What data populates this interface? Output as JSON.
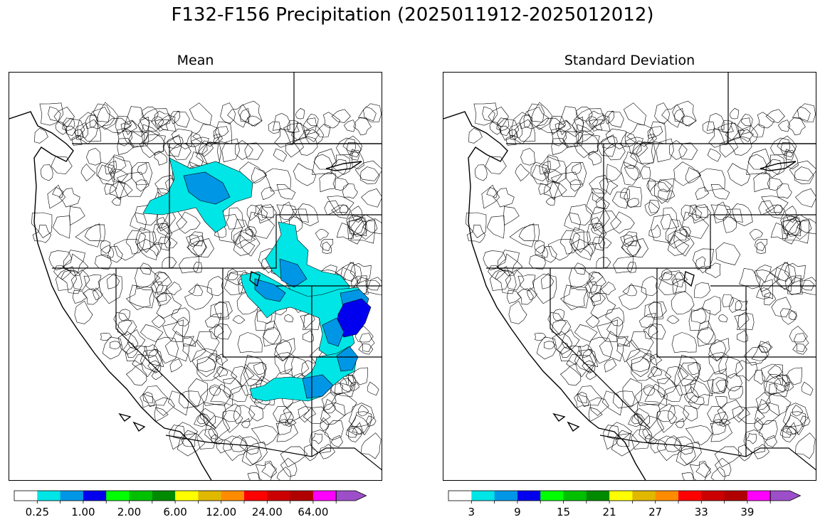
{
  "figure": {
    "title": "F132-F156 Precipitation (2025011912-2025012012)"
  },
  "panels": [
    {
      "title": "Mean",
      "colorbar": {
        "colors": [
          "#ffffff",
          "#00e5e5",
          "#0096e6",
          "#0000ee",
          "#00ff00",
          "#00c000",
          "#008a00",
          "#ffff00",
          "#e0b800",
          "#ff8c00",
          "#ff0000",
          "#cc0000",
          "#b00000",
          "#ff00ff",
          "#9c4fc8"
        ],
        "tick_labels": [
          "0.25",
          "1.00",
          "2.00",
          "6.00",
          "12.00",
          "24.00",
          "64.00"
        ]
      }
    },
    {
      "title": "Standard Deviation",
      "colorbar": {
        "colors": [
          "#ffffff",
          "#00e5e5",
          "#0096e6",
          "#0000ee",
          "#00ff00",
          "#00c000",
          "#008a00",
          "#ffff00",
          "#e0b800",
          "#ff8c00",
          "#ff0000",
          "#cc0000",
          "#b00000",
          "#ff00ff",
          "#9c4fc8"
        ],
        "tick_labels": [
          "3",
          "9",
          "15",
          "21",
          "27",
          "33",
          "39"
        ]
      }
    }
  ]
}
